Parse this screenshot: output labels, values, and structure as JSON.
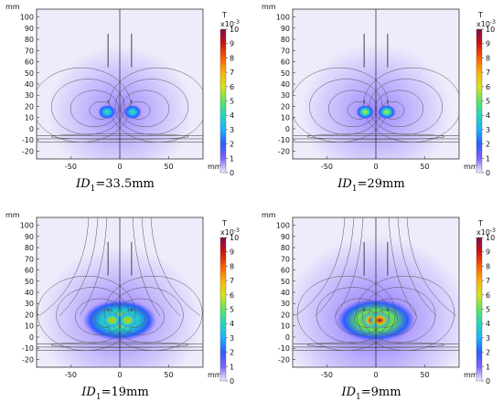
{
  "colors": {
    "background": "#ffffff",
    "plot_background": "#eeebfb",
    "field_low": "#7d62ff",
    "field_mid": "#20d8c0",
    "field_high": "#d11010",
    "flux_lines": "#555555",
    "conductor": "#444444"
  },
  "colormap": [
    "#f2efff",
    "#7d62ff",
    "#2a5cff",
    "#19b4ff",
    "#20d8c0",
    "#5ee35e",
    "#d6e41c",
    "#ffb000",
    "#ff5a00",
    "#d11010",
    "#7a0d4e"
  ],
  "chart_data": [
    {
      "type": "heatmap",
      "caption_var": "ID",
      "caption_sub": "1",
      "caption_value": "=33.5mm",
      "x_unit": "mm",
      "y_unit": "mm",
      "x_ticks": [
        "-50",
        "0",
        "50"
      ],
      "y_ticks": [
        "100",
        "90",
        "80",
        "70",
        "60",
        "50",
        "40",
        "30",
        "20",
        "10",
        "0",
        "-10",
        "-20"
      ],
      "xlim": [
        -85,
        85
      ],
      "ylim": [
        -27,
        107
      ],
      "colorbar": {
        "unit": "T",
        "exponent": "x10",
        "exponent_power": "-3",
        "ticks": [
          "10",
          "9",
          "8",
          "7",
          "6",
          "5",
          "4",
          "3",
          "2",
          "1",
          "0"
        ],
        "range": [
          0,
          10
        ]
      },
      "hotspots": [
        {
          "x": -13,
          "y": 15,
          "peak": 4.5
        },
        {
          "x": 13,
          "y": 15,
          "peak": 4.5
        }
      ],
      "peak_field": 4.5
    },
    {
      "type": "heatmap",
      "caption_var": "ID",
      "caption_sub": "1",
      "caption_value": "=29mm",
      "x_unit": "mm",
      "y_unit": "mm",
      "x_ticks": [
        "-50",
        "0",
        "50"
      ],
      "y_ticks": [
        "100",
        "90",
        "80",
        "70",
        "60",
        "50",
        "40",
        "30",
        "20",
        "10",
        "0",
        "-10",
        "-20"
      ],
      "xlim": [
        -85,
        85
      ],
      "ylim": [
        -27,
        107
      ],
      "colorbar": {
        "unit": "T",
        "exponent": "x10",
        "exponent_power": "-3",
        "ticks": [
          "10",
          "9",
          "8",
          "7",
          "6",
          "5",
          "4",
          "3",
          "2",
          "1",
          "0"
        ],
        "range": [
          0,
          10
        ]
      },
      "hotspots": [
        {
          "x": -11,
          "y": 15,
          "peak": 5
        },
        {
          "x": 11,
          "y": 15,
          "peak": 5
        }
      ],
      "peak_field": 5
    },
    {
      "type": "heatmap",
      "caption_var": "ID",
      "caption_sub": "1",
      "caption_value": "=19mm",
      "x_unit": "mm",
      "y_unit": "mm",
      "x_ticks": [
        "-50",
        "0",
        "50"
      ],
      "y_ticks": [
        "100",
        "90",
        "80",
        "70",
        "60",
        "50",
        "40",
        "30",
        "20",
        "10",
        "0",
        "-10",
        "-20"
      ],
      "xlim": [
        -85,
        85
      ],
      "ylim": [
        -27,
        107
      ],
      "colorbar": {
        "unit": "T",
        "exponent": "x10",
        "exponent_power": "-3",
        "ticks": [
          "10",
          "9",
          "8",
          "7",
          "6",
          "5",
          "4",
          "3",
          "2",
          "1",
          "0"
        ],
        "range": [
          0,
          10
        ]
      },
      "hotspots": [
        {
          "x": -8,
          "y": 15,
          "peak": 6.5
        },
        {
          "x": 8,
          "y": 15,
          "peak": 6.5
        }
      ],
      "peak_field": 6.5
    },
    {
      "type": "heatmap",
      "caption_var": "ID",
      "caption_sub": "1",
      "caption_value": "=9mm",
      "x_unit": "mm",
      "y_unit": "mm",
      "x_ticks": [
        "-50",
        "0",
        "50"
      ],
      "y_ticks": [
        "100",
        "90",
        "80",
        "70",
        "60",
        "50",
        "40",
        "30",
        "20",
        "10",
        "0",
        "-10",
        "-20"
      ],
      "xlim": [
        -85,
        85
      ],
      "ylim": [
        -27,
        107
      ],
      "colorbar": {
        "unit": "T",
        "exponent": "x10",
        "exponent_power": "-3",
        "ticks": [
          "10",
          "9",
          "8",
          "7",
          "6",
          "5",
          "4",
          "3",
          "2",
          "1",
          "0"
        ],
        "range": [
          0,
          10
        ]
      },
      "hotspots": [
        {
          "x": -4,
          "y": 15,
          "peak": 9.5
        },
        {
          "x": 4,
          "y": 15,
          "peak": 9.5
        }
      ],
      "peak_field": 9.5
    }
  ]
}
